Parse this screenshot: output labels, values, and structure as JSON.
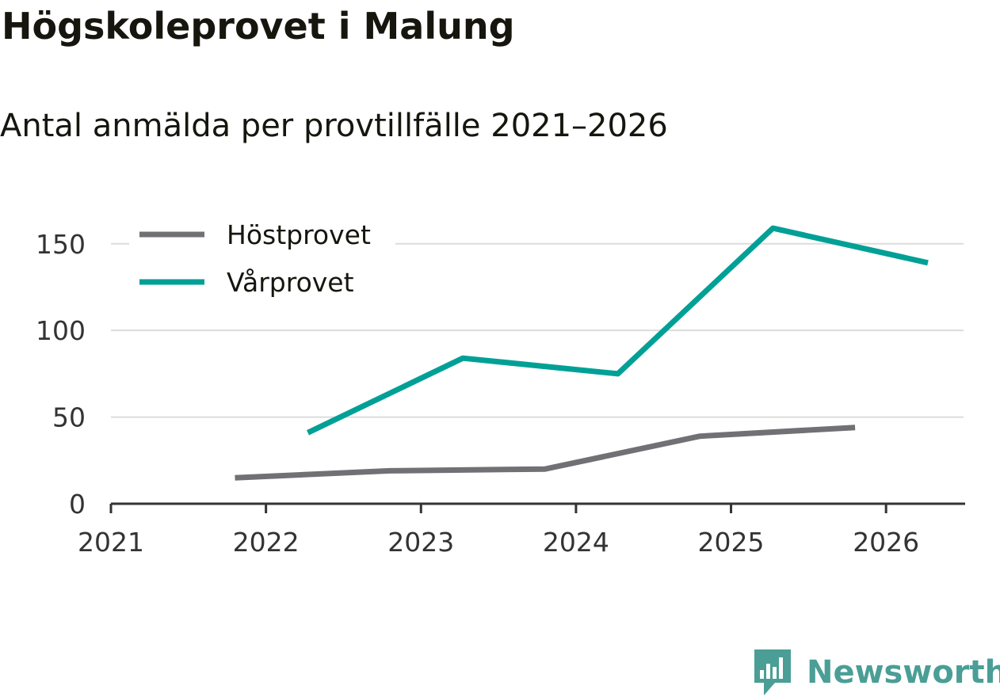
{
  "header": {
    "title": "Högskoleprovet i Malung",
    "subtitle": "Antal anmälda per provtillfälle 2021–2026"
  },
  "brand": {
    "name": "Newsworthy",
    "color": "#4a9e96"
  },
  "colors": {
    "grid": "#dcdcdc",
    "axis": "#333333"
  },
  "chart_data": {
    "type": "line",
    "title": "Högskoleprovet i Malung",
    "subtitle": "Antal anmälda per provtillfälle 2021–2026",
    "xlabel": "",
    "ylabel": "",
    "xlim": [
      2021,
      2026.5
    ],
    "ylim": [
      0,
      170
    ],
    "x_ticks": [
      2021,
      2022,
      2023,
      2024,
      2025,
      2026
    ],
    "x_tick_labels": [
      "2021",
      "2022",
      "2023",
      "2024",
      "2025",
      "2026"
    ],
    "y_ticks": [
      0,
      50,
      100,
      150
    ],
    "y_tick_labels": [
      "0",
      "50",
      "100",
      "150"
    ],
    "grid": true,
    "legend_position": "top-left",
    "series": [
      {
        "name": "Höstprovet",
        "color": "#717074",
        "x": [
          2021.8,
          2022.8,
          2023.8,
          2024.8,
          2025.8
        ],
        "values": [
          15,
          19,
          20,
          39,
          44
        ]
      },
      {
        "name": "Vårprovet",
        "color": "#00a096",
        "x": [
          2022.27,
          2023.27,
          2024.27,
          2025.27,
          2026.27
        ],
        "values": [
          41,
          84,
          75,
          159,
          139
        ]
      }
    ]
  }
}
